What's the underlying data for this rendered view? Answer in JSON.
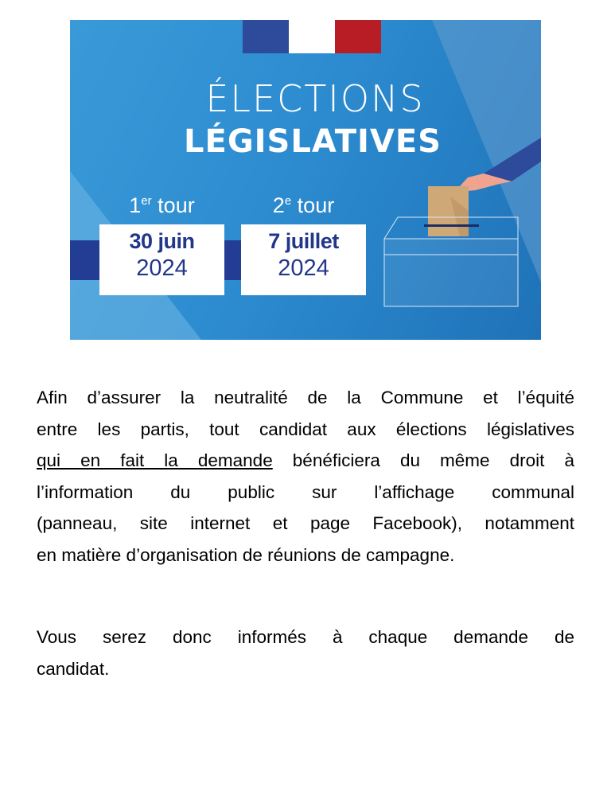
{
  "banner": {
    "title_light": "ÉLECTIONS",
    "title_bold": "LÉGISLATIVES",
    "round1": {
      "num": "1",
      "sup": "er",
      "label": " tour",
      "date": "30 juin",
      "year": "2024"
    },
    "round2": {
      "num": "2",
      "sup": "e",
      "label": " tour",
      "date": "7 juillet",
      "year": "2024"
    },
    "colors": {
      "flag_blue": "#2e4a9a",
      "flag_white": "#ffffff",
      "flag_red": "#b81c25",
      "band": "#223d93",
      "text_dark": "#22368a"
    },
    "illustration": "hand-ballot-box-icon"
  },
  "paragraph1": {
    "lines": [
      "Afin d’assurer la neutralité de la Commune et l’équité",
      "entre les partis, tout candidat aux élections législatives"
    ],
    "line3_underlined": "qui en fait la demande",
    "line3_rest": " bénéficiera du même droit à",
    "lines_after": [
      "l’information du public sur l’affichage communal",
      "(panneau, site internet et page Facebook), notamment",
      "en matière d’organisation de réunions de campagne."
    ]
  },
  "paragraph2": {
    "lines": [
      "Vous serez donc informés à chaque demande de",
      "candidat."
    ]
  }
}
